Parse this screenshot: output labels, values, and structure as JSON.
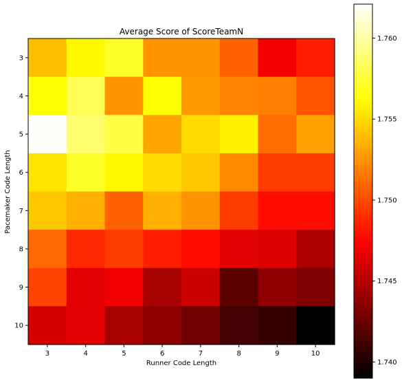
{
  "chart_data": {
    "type": "heatmap",
    "title": "Average Score of ScoreTeamN",
    "xlabel": "Runner Code Length",
    "ylabel": "Pacemaker Code Length",
    "x": [
      "3",
      "4",
      "5",
      "6",
      "7",
      "8",
      "9",
      "10"
    ],
    "y": [
      "3",
      "4",
      "5",
      "6",
      "7",
      "8",
      "9",
      "10"
    ],
    "values": [
      [
        1.754,
        1.756,
        1.7572,
        1.7525,
        1.7525,
        1.7508,
        1.747,
        1.7485
      ],
      [
        1.7563,
        1.7582,
        1.7525,
        1.7563,
        1.7528,
        1.752,
        1.7518,
        1.7503
      ],
      [
        1.762,
        1.7588,
        1.7578,
        1.7532,
        1.755,
        1.7558,
        1.7512,
        1.753
      ],
      [
        1.7553,
        1.7572,
        1.756,
        1.755,
        1.7543,
        1.7522,
        1.7495,
        1.7495
      ],
      [
        1.7543,
        1.7535,
        1.7508,
        1.7535,
        1.7525,
        1.7495,
        1.7478,
        1.7478
      ],
      [
        1.751,
        1.7488,
        1.7495,
        1.7485,
        1.7478,
        1.7465,
        1.7463,
        1.7447
      ],
      [
        1.7497,
        1.7465,
        1.747,
        1.7445,
        1.7457,
        1.742,
        1.7438,
        1.7432
      ],
      [
        1.746,
        1.7465,
        1.7445,
        1.7437,
        1.7428,
        1.7412,
        1.7408,
        1.739
      ]
    ],
    "colormap": "hot",
    "vmin": 1.739,
    "vmax": 1.7621,
    "colorbar": {
      "ticks": [
        "1.740",
        "1.745",
        "1.750",
        "1.755",
        "1.760"
      ],
      "tick_values": [
        1.74,
        1.745,
        1.75,
        1.755,
        1.76
      ]
    },
    "grid": false,
    "legend": "colorbar-right"
  }
}
